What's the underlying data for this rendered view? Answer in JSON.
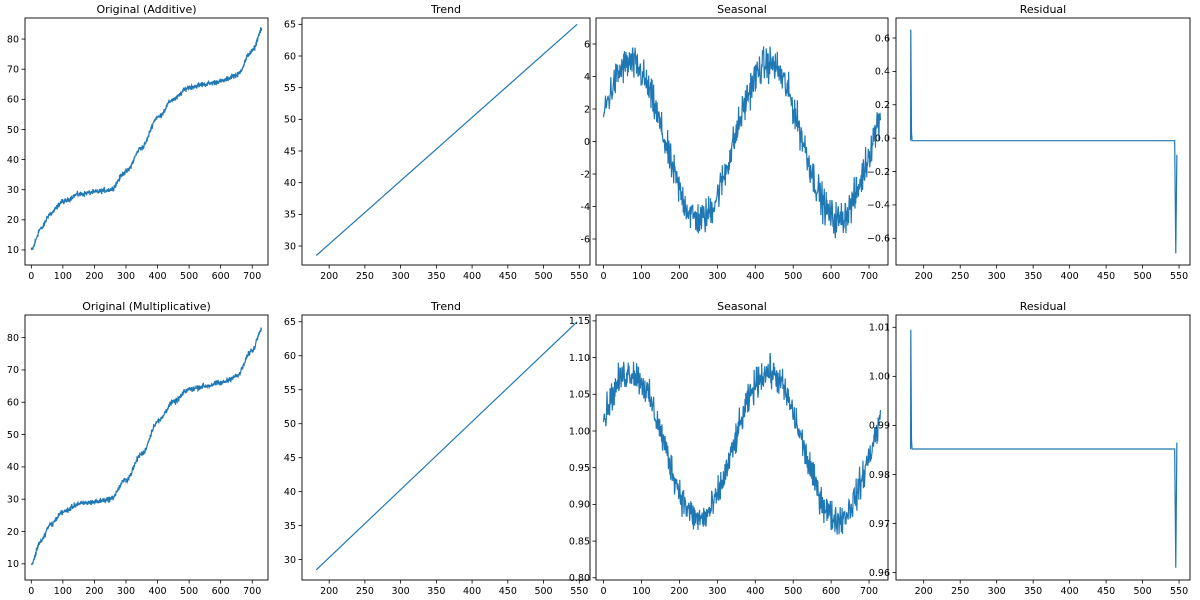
{
  "chart_data": [
    {
      "type": "line",
      "title": "Original (Additive)",
      "xlim": [
        -20,
        750
      ],
      "ylim": [
        5,
        87
      ],
      "xticks": [
        0,
        100,
        200,
        300,
        400,
        500,
        600,
        700
      ],
      "yticks": [
        10,
        20,
        30,
        40,
        50,
        60,
        70,
        80
      ],
      "series_shape": "original",
      "x": [
        0,
        730
      ],
      "noise": 1.3,
      "anchors": [
        [
          0,
          10
        ],
        [
          30,
          17
        ],
        [
          60,
          22
        ],
        [
          100,
          26
        ],
        [
          150,
          28.5
        ],
        [
          200,
          29.2
        ],
        [
          250,
          30
        ],
        [
          300,
          36
        ],
        [
          350,
          44
        ],
        [
          400,
          54
        ],
        [
          450,
          60
        ],
        [
          500,
          64
        ],
        [
          550,
          65
        ],
        [
          600,
          66
        ],
        [
          650,
          68
        ],
        [
          700,
          76
        ],
        [
          730,
          83
        ]
      ],
      "color": "#1f77b4"
    },
    {
      "type": "line",
      "title": "Trend",
      "xlim": [
        162,
        565
      ],
      "ylim": [
        27,
        66
      ],
      "xticks": [
        200,
        250,
        300,
        350,
        400,
        450,
        500,
        550
      ],
      "yticks": [
        30,
        35,
        40,
        45,
        50,
        55,
        60,
        65
      ],
      "x": [
        182,
        547
      ],
      "y": [
        28.5,
        65
      ],
      "color": "#1f77b4"
    },
    {
      "type": "line",
      "title": "Seasonal",
      "xlim": [
        -20,
        750
      ],
      "ylim": [
        -7.6,
        7.6
      ],
      "xticks": [
        0,
        100,
        200,
        300,
        400,
        500,
        600,
        700
      ],
      "yticks": [
        -6,
        -4,
        -2,
        0,
        2,
        4,
        6
      ],
      "series_shape": "seasonal",
      "x": [
        0,
        730
      ],
      "amplitude": 4.8,
      "period": 365,
      "phase_peak": 70,
      "noise": 1.6,
      "color": "#1f77b4"
    },
    {
      "type": "line",
      "title": "Residual",
      "xlim": [
        162,
        565
      ],
      "ylim": [
        -0.76,
        0.72
      ],
      "xticks": [
        200,
        250,
        300,
        350,
        400,
        450,
        500,
        550
      ],
      "yticks": [
        -0.6,
        -0.4,
        -0.2,
        0.0,
        0.2,
        0.4,
        0.6
      ],
      "ytick_labels": [
        "−0.6",
        "−0.4",
        "−0.2",
        "0.0",
        "0.2",
        "0.4",
        "0.6"
      ],
      "series_shape": "residual",
      "x": [
        182,
        547
      ],
      "baseline": -0.015,
      "start_spike": 0.65,
      "end_spike": -0.69,
      "end_recover": -0.1,
      "color": "#1f77b4"
    },
    {
      "type": "line",
      "title": "Original (Multiplicative)",
      "xlim": [
        -20,
        750
      ],
      "ylim": [
        5,
        87
      ],
      "xticks": [
        0,
        100,
        200,
        300,
        400,
        500,
        600,
        700
      ],
      "yticks": [
        10,
        20,
        30,
        40,
        50,
        60,
        70,
        80
      ],
      "series_shape": "original",
      "x": [
        0,
        730
      ],
      "noise": 1.3,
      "anchors": [
        [
          0,
          10
        ],
        [
          30,
          17
        ],
        [
          60,
          22
        ],
        [
          100,
          26
        ],
        [
          150,
          28.5
        ],
        [
          200,
          29.2
        ],
        [
          250,
          30
        ],
        [
          300,
          36
        ],
        [
          350,
          44
        ],
        [
          400,
          54
        ],
        [
          450,
          60
        ],
        [
          500,
          64
        ],
        [
          550,
          65
        ],
        [
          600,
          66
        ],
        [
          650,
          68
        ],
        [
          700,
          76
        ],
        [
          730,
          83
        ]
      ],
      "color": "#1f77b4"
    },
    {
      "type": "line",
      "title": "Trend",
      "xlim": [
        162,
        565
      ],
      "ylim": [
        27,
        66
      ],
      "xticks": [
        200,
        250,
        300,
        350,
        400,
        450,
        500,
        550
      ],
      "yticks": [
        30,
        35,
        40,
        45,
        50,
        55,
        60,
        65
      ],
      "x": [
        182,
        547
      ],
      "y": [
        28.5,
        65
      ],
      "color": "#1f77b4"
    },
    {
      "type": "line",
      "title": "Seasonal",
      "xlim": [
        -20,
        750
      ],
      "ylim": [
        0.797,
        1.158
      ],
      "xticks": [
        0,
        100,
        200,
        300,
        400,
        500,
        600,
        700
      ],
      "yticks": [
        0.8,
        0.85,
        0.9,
        0.95,
        1.0,
        1.05,
        1.1,
        1.15
      ],
      "ytick_labels": [
        "0.80",
        "0.85",
        "0.90",
        "0.95",
        "1.00",
        "1.05",
        "1.10",
        "1.15"
      ],
      "series_shape": "seasonal",
      "x": [
        0,
        730
      ],
      "center": 0.98,
      "amplitude": 0.1,
      "period": 365,
      "phase_peak": 70,
      "noise": 0.032,
      "color": "#1f77b4"
    },
    {
      "type": "line",
      "title": "Residual",
      "xlim": [
        162,
        565
      ],
      "ylim": [
        0.9585,
        1.0125
      ],
      "xticks": [
        200,
        250,
        300,
        350,
        400,
        450,
        500,
        550
      ],
      "yticks": [
        0.96,
        0.97,
        0.98,
        0.99,
        1.0,
        1.01
      ],
      "ytick_labels": [
        "0.96",
        "0.97",
        "0.98",
        "0.99",
        "1.00",
        "1.01"
      ],
      "series_shape": "residual",
      "x": [
        182,
        547
      ],
      "baseline": 0.9852,
      "start_spike": 1.0095,
      "end_spike": 0.961,
      "end_recover": 0.9865,
      "color": "#1f77b4"
    }
  ]
}
